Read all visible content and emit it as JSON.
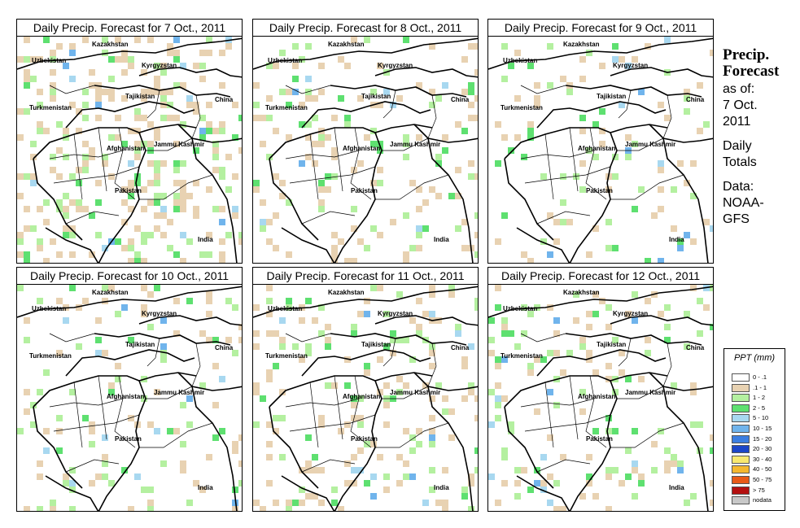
{
  "panels": [
    {
      "title": "Daily Precip. Forecast for  7 Oct., 2011",
      "seed": 7,
      "density": 0.2
    },
    {
      "title": "Daily Precip. Forecast for  8 Oct., 2011",
      "seed": 8,
      "density": 0.14
    },
    {
      "title": "Daily Precip. Forecast for  9 Oct., 2011",
      "seed": 9,
      "density": 0.09
    },
    {
      "title": "Daily Precip. Forecast for  10 Oct., 2011",
      "seed": 10,
      "density": 0.12
    },
    {
      "title": "Daily Precip. Forecast for  11 Oct., 2011",
      "seed": 11,
      "density": 0.15
    },
    {
      "title": "Daily Precip. Forecast for  12 Oct., 2011",
      "seed": 12,
      "density": 0.13
    }
  ],
  "map_labels": {
    "kazakhstan": "Kazakhstan",
    "uzbekistan": "Uzbekistan",
    "kyrgyzstan": "Kyrgyzstan",
    "tajikistan": "Tajikistan",
    "turkmenistan": "Turkmenistan",
    "china": "China",
    "afghanistan": "Afghanistan",
    "jammu_kashmir": "Jammu Kashmir",
    "pakistan": "Pakistan",
    "india": "India"
  },
  "sidebar": {
    "title_line1": "Precip.",
    "title_line2": "Forecast",
    "as_of": "as of:",
    "date_line1": "7 Oct.",
    "date_line2": "2011",
    "daily": "Daily",
    "totals": "Totals",
    "data_label": "Data:",
    "source_line1": "NOAA-",
    "source_line2": "GFS"
  },
  "legend": {
    "title": "PPT (mm)",
    "items": [
      {
        "label": "0 - .1",
        "color": "#ffffff"
      },
      {
        "label": ".1 - 1",
        "color": "#e8d2b2"
      },
      {
        "label": "1 - 2",
        "color": "#b4f0a0"
      },
      {
        "label": "2 - 5",
        "color": "#5ee070"
      },
      {
        "label": "5 - 10",
        "color": "#a8d8f0"
      },
      {
        "label": "10 - 15",
        "color": "#70b4ec"
      },
      {
        "label": "15 - 20",
        "color": "#3c7ee0"
      },
      {
        "label": "20 - 30",
        "color": "#1c46c8"
      },
      {
        "label": "30 - 40",
        "color": "#f8e870"
      },
      {
        "label": "40 - 50",
        "color": "#f4b830"
      },
      {
        "label": "50 - 75",
        "color": "#e85a18"
      },
      {
        "label": "> 75",
        "color": "#b41010"
      },
      {
        "label": "nodata",
        "color": "#c8c8c8"
      }
    ]
  }
}
